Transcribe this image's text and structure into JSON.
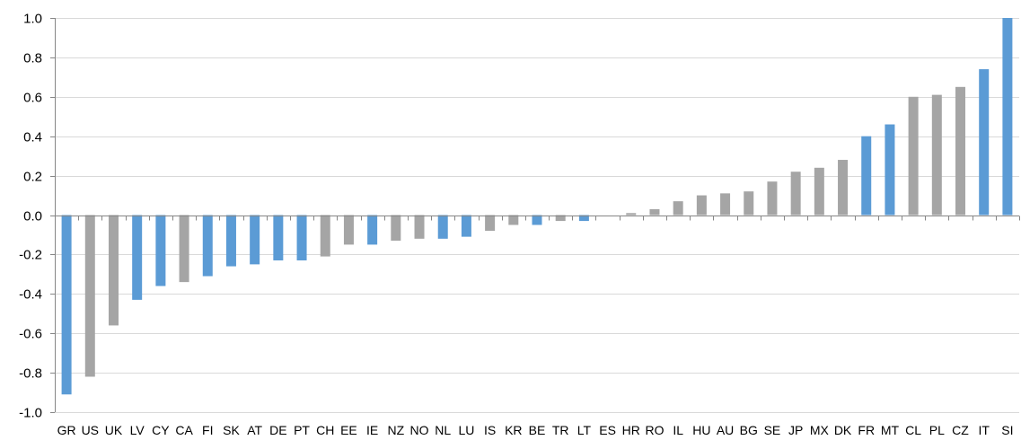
{
  "chart_data": {
    "type": "bar",
    "title": "",
    "xlabel": "",
    "ylabel": "",
    "ylim": [
      -1.0,
      1.0
    ],
    "yticks": [
      -1.0,
      -0.8,
      -0.6,
      -0.4,
      -0.2,
      0.0,
      0.2,
      0.4,
      0.6,
      0.8,
      1.0
    ],
    "ytick_labels": [
      "-1.0",
      "-0.8",
      "-0.6",
      "-0.4",
      "-0.2",
      "0.0",
      "0.2",
      "0.4",
      "0.6",
      "0.8",
      "1.0"
    ],
    "grid": "horizontal",
    "legend": "none",
    "colors": {
      "highlight": "#5B9BD5",
      "other": "#A5A5A5",
      "grid": "#D9D9D9",
      "axis": "#868686"
    },
    "categories": [
      "GR",
      "US",
      "UK",
      "LV",
      "CY",
      "CA",
      "FI",
      "SK",
      "AT",
      "DE",
      "PT",
      "CH",
      "EE",
      "IE",
      "NZ",
      "NO",
      "NL",
      "LU",
      "IS",
      "KR",
      "BE",
      "TR",
      "LT",
      "ES",
      "HR",
      "RO",
      "IL",
      "HU",
      "AU",
      "BG",
      "SE",
      "JP",
      "MX",
      "DK",
      "FR",
      "MT",
      "CL",
      "PL",
      "CZ",
      "IT",
      "SI"
    ],
    "values": [
      -0.91,
      -0.82,
      -0.56,
      -0.43,
      -0.36,
      -0.34,
      -0.31,
      -0.26,
      -0.25,
      -0.23,
      -0.23,
      -0.21,
      -0.15,
      -0.15,
      -0.13,
      -0.12,
      -0.12,
      -0.11,
      -0.08,
      -0.05,
      -0.05,
      -0.03,
      -0.03,
      0.0,
      0.01,
      0.03,
      0.07,
      0.1,
      0.11,
      0.12,
      0.17,
      0.22,
      0.24,
      0.28,
      0.4,
      0.46,
      0.6,
      0.61,
      0.65,
      0.74,
      1.0
    ],
    "highlight": [
      true,
      false,
      false,
      true,
      true,
      false,
      true,
      true,
      true,
      true,
      true,
      false,
      false,
      true,
      false,
      false,
      true,
      true,
      false,
      false,
      true,
      false,
      true,
      true,
      false,
      false,
      false,
      false,
      false,
      false,
      false,
      false,
      false,
      false,
      true,
      true,
      false,
      false,
      false,
      true,
      true
    ]
  }
}
